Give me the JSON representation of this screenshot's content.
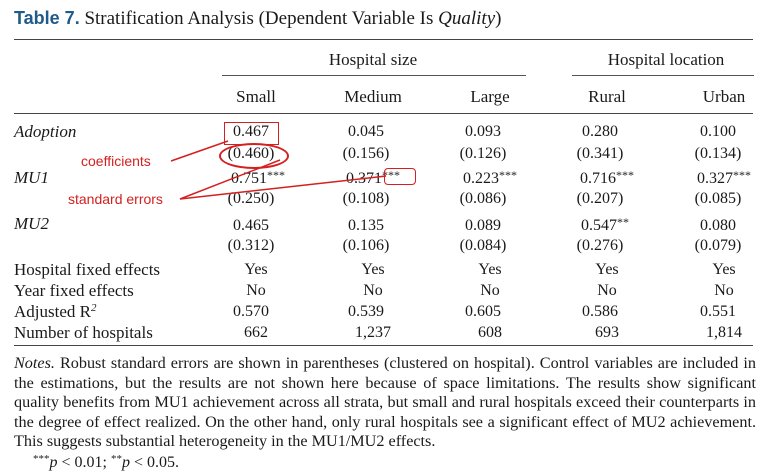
{
  "title": {
    "label": "Table 7.",
    "text": "Stratification Analysis (Dependent Variable Is ",
    "italic": "Quality",
    "close": ")"
  },
  "group_headers": [
    "Hospital size",
    "Hospital location"
  ],
  "columns": [
    "Small",
    "Medium",
    "Large",
    "Rural",
    "Urban"
  ],
  "rows": {
    "adoption": {
      "label": "Adoption",
      "coef": [
        "0.467",
        "0.045",
        "0.093",
        "0.280",
        "0.100"
      ],
      "se": [
        "(0.460)",
        "(0.156)",
        "(0.126)",
        "(0.341)",
        "(0.134)"
      ]
    },
    "mu1": {
      "label": "MU1",
      "coef": [
        "0.751",
        "0.371",
        "0.223",
        "0.716",
        "0.327"
      ],
      "stars": [
        "***",
        "***",
        "***",
        "***",
        "***"
      ],
      "se": [
        "(0.250)",
        "(0.108)",
        "(0.086)",
        "(0.207)",
        "(0.085)"
      ]
    },
    "mu2": {
      "label": "MU2",
      "coef": [
        "0.465",
        "0.135",
        "0.089",
        "0.547",
        "0.080"
      ],
      "stars": [
        "",
        "",
        "",
        "**",
        ""
      ],
      "se": [
        "(0.312)",
        "(0.106)",
        "(0.084)",
        "(0.276)",
        "(0.079)"
      ]
    },
    "hospital_fe": {
      "label": "Hospital fixed effects",
      "values": [
        "Yes",
        "Yes",
        "Yes",
        "Yes",
        "Yes"
      ]
    },
    "year_fe": {
      "label": "Year fixed effects",
      "values": [
        "No",
        "No",
        "No",
        "No",
        "No"
      ]
    },
    "adj_r2": {
      "label": "Adjusted R",
      "label_sup": "2",
      "values": [
        "0.570",
        "0.539",
        "0.605",
        "0.586",
        "0.551"
      ]
    },
    "n_hospitals": {
      "label": "Number of hospitals",
      "values": [
        "662",
        "1,237",
        "608",
        "693",
        "1,814"
      ]
    }
  },
  "notes": {
    "label": "Notes.",
    "text": " Robust standard errors are shown in parentheses (clustered on hospital). Control variables are included in the estimations, but the results are not shown here because of space limitations. The results show significant quality benefits from MU1 achievement across all strata, but small and rural hospitals exceed their counterparts in the degree of effect realized. On the other hand, only rural hospitals see a significant effect of MU2 achievement. This suggests substantial heterogeneity in the MU1/MU2 effects.",
    "sig": {
      "s1": "***",
      "p1": "p",
      "t1": " < 0.01; ",
      "s2": "**",
      "p2": "p",
      "t2": " < 0.05."
    }
  },
  "annotations": {
    "coefficients": "coefficients",
    "standard_errors": "standard errors",
    "color": "#d42020"
  }
}
